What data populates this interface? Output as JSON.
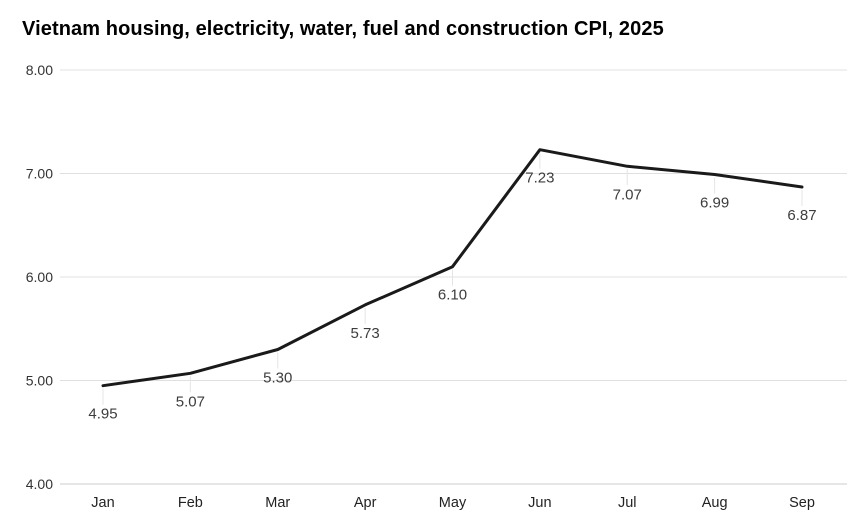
{
  "chart_data": {
    "type": "line",
    "title": "Vietnam housing, electricity, water, fuel and construction CPI, 2025",
    "categories": [
      "Jan",
      "Feb",
      "Mar",
      "Apr",
      "May",
      "Jun",
      "Jul",
      "Aug",
      "Sep"
    ],
    "values": [
      4.95,
      5.07,
      5.3,
      5.73,
      6.1,
      7.23,
      7.07,
      6.99,
      6.87
    ],
    "point_labels": [
      "4.95",
      "5.07",
      "5.30",
      "5.73",
      "6.10",
      "7.23",
      "7.07",
      "6.99",
      "6.87"
    ],
    "xlabel": "",
    "ylabel": "",
    "ylim": [
      4.0,
      8.0
    ],
    "y_ticks": [
      {
        "value": 8,
        "label": "8.00"
      },
      {
        "value": 7,
        "label": "7.00"
      },
      {
        "value": 6,
        "label": "6.00"
      },
      {
        "value": 5,
        "label": "5.00"
      },
      {
        "value": 4,
        "label": "4.00"
      }
    ],
    "grid": "horizontal",
    "legend": "none",
    "colors": {
      "line": "#1a1a1a",
      "gridline": "#e0e0e0",
      "axis_line": "#cccccc",
      "leader_line": "#e4e4e4",
      "y_tick_label": "#333333",
      "x_tick_label": "#222222",
      "data_label": "#3d3d3d",
      "title": "#000000",
      "background": "#ffffff"
    }
  }
}
